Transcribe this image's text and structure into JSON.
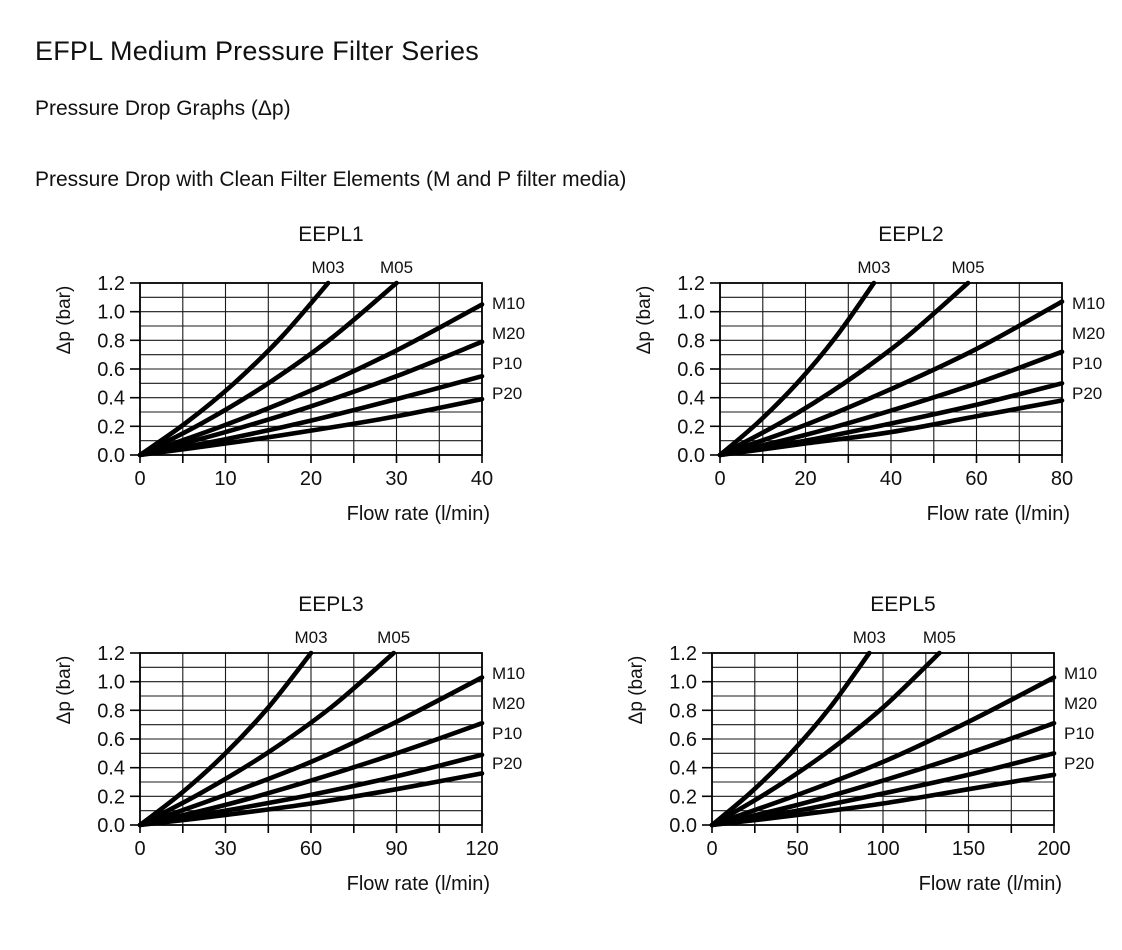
{
  "page": {
    "title": "EFPL Medium Pressure Filter Series",
    "subtitle": "Pressure Drop Graphs (Δp)",
    "section_heading": "Pressure Drop with Clean Filter Elements (M and P filter media)"
  },
  "colors": {
    "background": "#ffffff",
    "text": "#111111",
    "curve": "#000000",
    "grid": "#1a1a1a",
    "frame": "#000000"
  },
  "chart_data": [
    {
      "type": "line",
      "title": "EEPL1",
      "xlabel": "Flow rate (l/min)",
      "ylabel": "Δp (bar)",
      "xlim": [
        0,
        40
      ],
      "ylim": [
        0,
        1.2
      ],
      "x_ticks": [
        0,
        10,
        20,
        30,
        40
      ],
      "y_ticks": [
        "0.0",
        "0.2",
        "0.4",
        "0.6",
        "0.8",
        "1.0",
        "1.2"
      ],
      "grid": {
        "on": true,
        "x_divisions": 8,
        "y_divisions": 12
      },
      "legend_position": "labels-on-plot-edges",
      "series": [
        {
          "name": "M03",
          "label_position": "top",
          "points": [
            [
              0,
              0
            ],
            [
              5.5,
              0.23
            ],
            [
              11,
              0.5
            ],
            [
              16.5,
              0.82
            ],
            [
              22,
              1.2
            ]
          ]
        },
        {
          "name": "M05",
          "label_position": "top",
          "points": [
            [
              0,
              0
            ],
            [
              7.5,
              0.23
            ],
            [
              15,
              0.5
            ],
            [
              22.5,
              0.82
            ],
            [
              30,
              1.2
            ]
          ]
        },
        {
          "name": "M10",
          "label_position": "right",
          "points": [
            [
              0,
              0
            ],
            [
              10,
              0.21
            ],
            [
              20,
              0.45
            ],
            [
              30,
              0.73
            ],
            [
              40,
              1.05
            ]
          ]
        },
        {
          "name": "M20",
          "label_position": "right",
          "points": [
            [
              0,
              0
            ],
            [
              10,
              0.16
            ],
            [
              20,
              0.34
            ],
            [
              30,
              0.55
            ],
            [
              40,
              0.79
            ]
          ]
        },
        {
          "name": "P10",
          "label_position": "right",
          "points": [
            [
              0,
              0
            ],
            [
              10,
              0.11
            ],
            [
              20,
              0.24
            ],
            [
              30,
              0.39
            ],
            [
              40,
              0.55
            ]
          ]
        },
        {
          "name": "P20",
          "label_position": "right",
          "points": [
            [
              0,
              0
            ],
            [
              10,
              0.08
            ],
            [
              20,
              0.17
            ],
            [
              30,
              0.27
            ],
            [
              40,
              0.39
            ]
          ]
        }
      ]
    },
    {
      "type": "line",
      "title": "EEPL2",
      "xlabel": "Flow rate (l/min)",
      "ylabel": "Δp (bar)",
      "xlim": [
        0,
        80
      ],
      "ylim": [
        0,
        1.2
      ],
      "x_ticks": [
        0,
        20,
        40,
        60,
        80
      ],
      "y_ticks": [
        "0.0",
        "0.2",
        "0.4",
        "0.6",
        "0.8",
        "1.0",
        "1.2"
      ],
      "grid": {
        "on": true,
        "x_divisions": 8,
        "y_divisions": 12
      },
      "legend_position": "labels-on-plot-edges",
      "series": [
        {
          "name": "M03",
          "label_position": "top",
          "points": [
            [
              0,
              0
            ],
            [
              9,
              0.23
            ],
            [
              18,
              0.5
            ],
            [
              27,
              0.82
            ],
            [
              36,
              1.2
            ]
          ]
        },
        {
          "name": "M05",
          "label_position": "top",
          "points": [
            [
              0,
              0
            ],
            [
              14.5,
              0.23
            ],
            [
              29,
              0.5
            ],
            [
              43.5,
              0.82
            ],
            [
              58,
              1.2
            ]
          ]
        },
        {
          "name": "M10",
          "label_position": "right",
          "points": [
            [
              0,
              0
            ],
            [
              20,
              0.21
            ],
            [
              40,
              0.46
            ],
            [
              60,
              0.74
            ],
            [
              80,
              1.07
            ]
          ]
        },
        {
          "name": "M20",
          "label_position": "right",
          "points": [
            [
              0,
              0
            ],
            [
              20,
              0.14
            ],
            [
              40,
              0.31
            ],
            [
              60,
              0.5
            ],
            [
              80,
              0.72
            ]
          ]
        },
        {
          "name": "P10",
          "label_position": "right",
          "points": [
            [
              0,
              0
            ],
            [
              20,
              0.1
            ],
            [
              40,
              0.22
            ],
            [
              60,
              0.35
            ],
            [
              80,
              0.5
            ]
          ]
        },
        {
          "name": "P20",
          "label_position": "right",
          "points": [
            [
              0,
              0
            ],
            [
              20,
              0.08
            ],
            [
              40,
              0.16
            ],
            [
              60,
              0.27
            ],
            [
              80,
              0.38
            ]
          ]
        }
      ]
    },
    {
      "type": "line",
      "title": "EEPL3",
      "xlabel": "Flow rate (l/min)",
      "ylabel": "Δp (bar)",
      "xlim": [
        0,
        120
      ],
      "ylim": [
        0,
        1.2
      ],
      "x_ticks": [
        0,
        30,
        60,
        90,
        120
      ],
      "y_ticks": [
        "0.0",
        "0.2",
        "0.4",
        "0.6",
        "0.8",
        "1.0",
        "1.2"
      ],
      "grid": {
        "on": true,
        "x_divisions": 8,
        "y_divisions": 12
      },
      "legend_position": "labels-on-plot-edges",
      "series": [
        {
          "name": "M03",
          "label_position": "top",
          "points": [
            [
              0,
              0
            ],
            [
              15,
              0.23
            ],
            [
              30,
              0.5
            ],
            [
              45,
              0.82
            ],
            [
              60,
              1.2
            ]
          ]
        },
        {
          "name": "M05",
          "label_position": "top",
          "points": [
            [
              0,
              0
            ],
            [
              22,
              0.23
            ],
            [
              44.5,
              0.5
            ],
            [
              67,
              0.82
            ],
            [
              89,
              1.2
            ]
          ]
        },
        {
          "name": "M10",
          "label_position": "right",
          "points": [
            [
              0,
              0
            ],
            [
              30,
              0.21
            ],
            [
              60,
              0.44
            ],
            [
              90,
              0.72
            ],
            [
              120,
              1.03
            ]
          ]
        },
        {
          "name": "M20",
          "label_position": "right",
          "points": [
            [
              0,
              0
            ],
            [
              30,
              0.14
            ],
            [
              60,
              0.31
            ],
            [
              90,
              0.5
            ],
            [
              120,
              0.71
            ]
          ]
        },
        {
          "name": "P10",
          "label_position": "right",
          "points": [
            [
              0,
              0
            ],
            [
              30,
              0.1
            ],
            [
              60,
              0.21
            ],
            [
              90,
              0.34
            ],
            [
              120,
              0.49
            ]
          ]
        },
        {
          "name": "P20",
          "label_position": "right",
          "points": [
            [
              0,
              0
            ],
            [
              30,
              0.07
            ],
            [
              60,
              0.15
            ],
            [
              90,
              0.25
            ],
            [
              120,
              0.36
            ]
          ]
        }
      ]
    },
    {
      "type": "line",
      "title": "EEPL5",
      "xlabel": "Flow rate (l/min)",
      "ylabel": "Δp (bar)",
      "xlim": [
        0,
        200
      ],
      "ylim": [
        0,
        1.2
      ],
      "x_ticks": [
        0,
        50,
        100,
        150,
        200
      ],
      "y_ticks": [
        "0.0",
        "0.2",
        "0.4",
        "0.6",
        "0.8",
        "1.0",
        "1.2"
      ],
      "grid": {
        "on": true,
        "x_divisions": 8,
        "y_divisions": 12
      },
      "legend_position": "labels-on-plot-edges",
      "series": [
        {
          "name": "M03",
          "label_position": "top",
          "points": [
            [
              0,
              0
            ],
            [
              23,
              0.23
            ],
            [
              46,
              0.5
            ],
            [
              69,
              0.82
            ],
            [
              92,
              1.2
            ]
          ]
        },
        {
          "name": "M05",
          "label_position": "top",
          "points": [
            [
              0,
              0
            ],
            [
              33,
              0.23
            ],
            [
              66.5,
              0.5
            ],
            [
              100,
              0.82
            ],
            [
              133,
              1.2
            ]
          ]
        },
        {
          "name": "M10",
          "label_position": "right",
          "points": [
            [
              0,
              0
            ],
            [
              50,
              0.21
            ],
            [
              100,
              0.44
            ],
            [
              150,
              0.72
            ],
            [
              200,
              1.03
            ]
          ]
        },
        {
          "name": "M20",
          "label_position": "right",
          "points": [
            [
              0,
              0
            ],
            [
              50,
              0.14
            ],
            [
              100,
              0.31
            ],
            [
              150,
              0.5
            ],
            [
              200,
              0.71
            ]
          ]
        },
        {
          "name": "P10",
          "label_position": "right",
          "points": [
            [
              0,
              0
            ],
            [
              50,
              0.1
            ],
            [
              100,
              0.22
            ],
            [
              150,
              0.35
            ],
            [
              200,
              0.5
            ]
          ]
        },
        {
          "name": "P20",
          "label_position": "right",
          "points": [
            [
              0,
              0
            ],
            [
              50,
              0.07
            ],
            [
              100,
              0.15
            ],
            [
              150,
              0.25
            ],
            [
              200,
              0.35
            ]
          ]
        }
      ]
    }
  ]
}
